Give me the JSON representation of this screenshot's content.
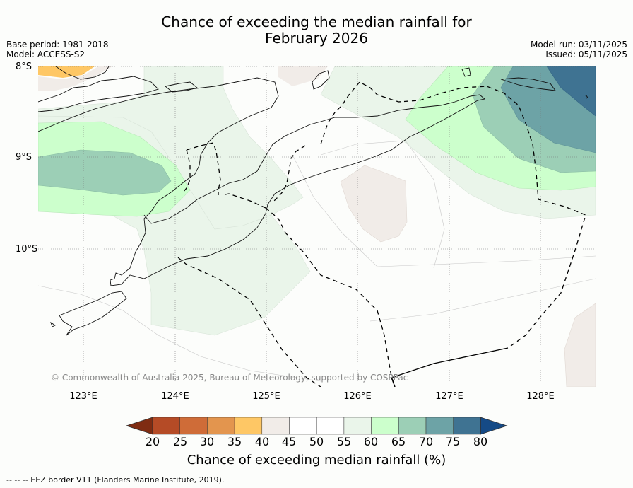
{
  "title": {
    "line1": "Chance of exceeding the median rainfall for",
    "line2": "February 2026"
  },
  "meta": {
    "base_period": "Base period: 1981-2018",
    "model": "Model: ACCESS-S2",
    "model_run": "Model run: 03/11/2025",
    "issued": "Issued: 05/11/2025"
  },
  "map": {
    "lat_labels": [
      "8°S",
      "9°S",
      "10°S"
    ],
    "lon_labels": [
      "123°E",
      "124°E",
      "125°E",
      "126°E",
      "127°E",
      "128°E"
    ],
    "copyright": "© Commonwealth of Australia 2025, Bureau of Meteorology, supported by COSPPac"
  },
  "colorbar": {
    "ticks": [
      "20",
      "25",
      "30",
      "35",
      "40",
      "45",
      "50",
      "55",
      "60",
      "65",
      "70",
      "75",
      "80"
    ],
    "colors": [
      "#7f2c12",
      "#b54b26",
      "#cf6c38",
      "#e3954e",
      "#fec765",
      "#f1ece8",
      "#ffffff",
      "#ffffff",
      "#eaf5ea",
      "#ccffcc",
      "#9ccfb6",
      "#6da3a6",
      "#3f7392",
      "#154a86"
    ],
    "label": "Chance of exceeding median rainfall (%)"
  },
  "footer": "--  --  -- EEZ border V11 (Flanders Marine Institute, 2019)."
}
